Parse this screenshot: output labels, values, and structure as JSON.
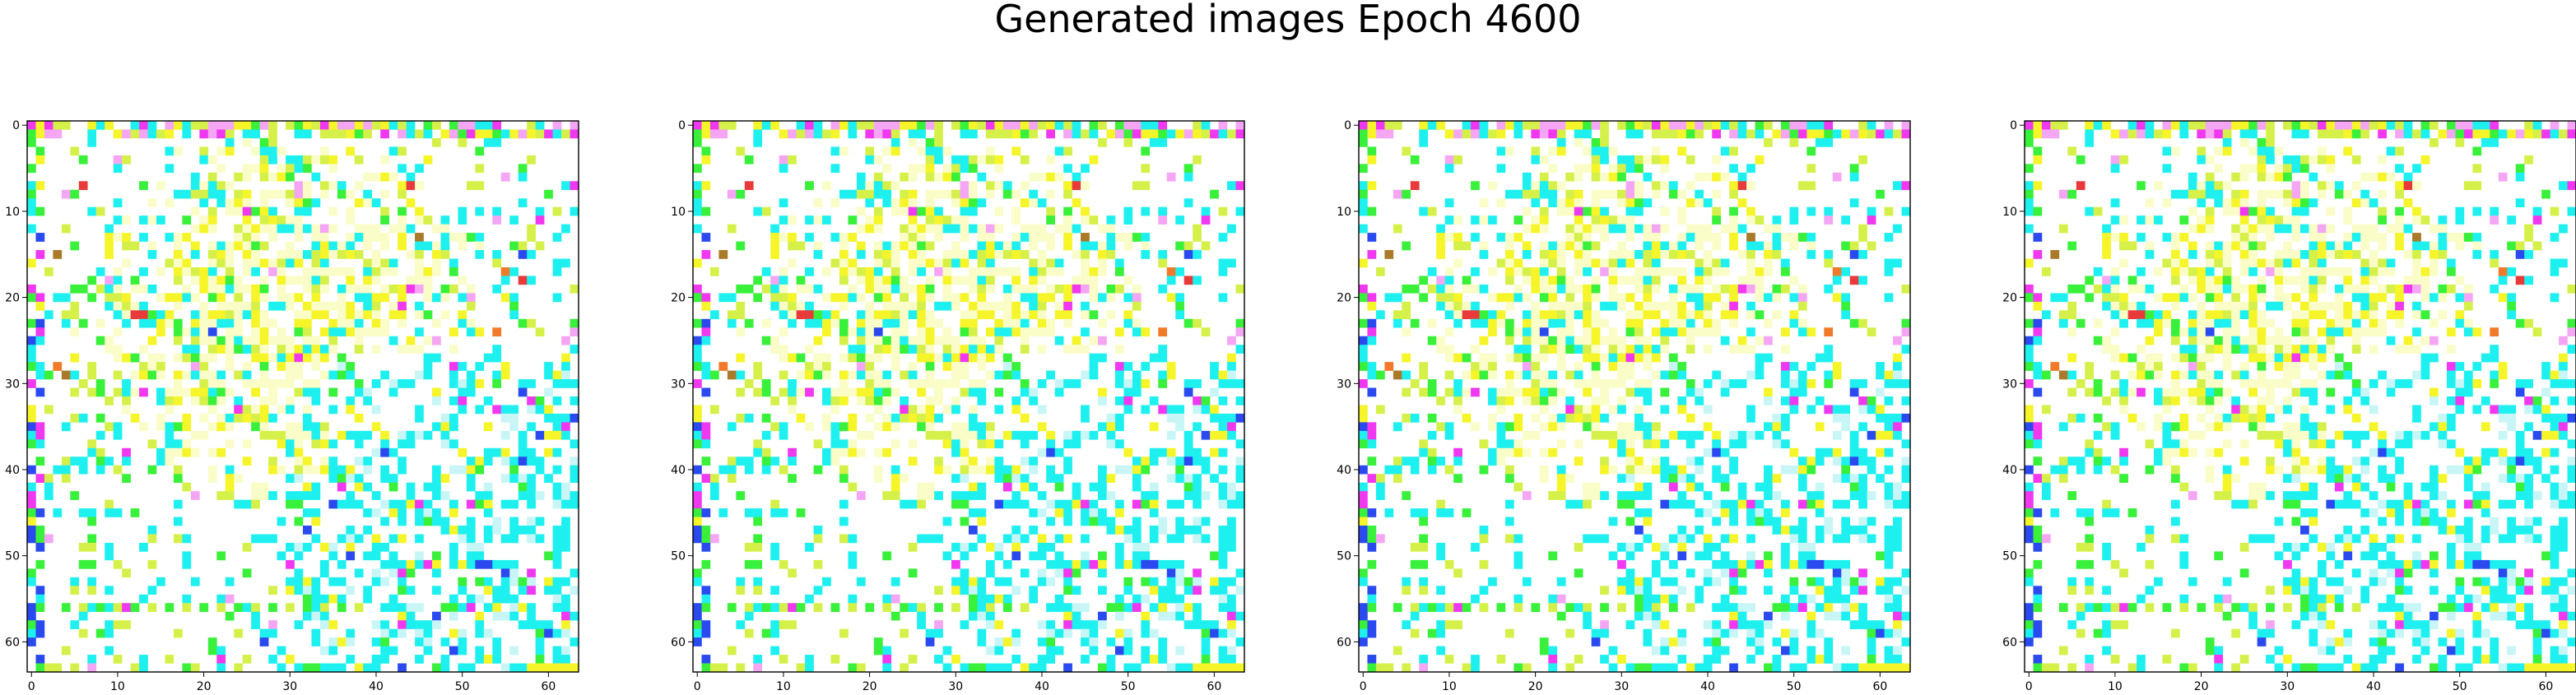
{
  "figure": {
    "title": "Generated images Epoch 4600"
  },
  "colors": {
    "background": "#ffffff",
    "axes": "#000000",
    "palette": {
      "white": "#ffffff",
      "pale_yellow": "#fafdc8",
      "yellow": "#f5f52a",
      "yellow_green": "#d6f04a",
      "green": "#39f03a",
      "cyan": "#1ef0f0",
      "pale_cyan": "#c8f6f6",
      "magenta": "#f038f0",
      "pink": "#f4a6f4",
      "blue": "#2a4af0",
      "orange": "#f07a2a",
      "red": "#e83a3a",
      "brown": "#a87a2a"
    }
  },
  "chart_data": [
    {
      "type": "heatmap",
      "panel": 1,
      "xticks": [
        "0",
        "10",
        "20",
        "30",
        "40",
        "50",
        "60"
      ],
      "yticks": [
        "0",
        "10",
        "20",
        "30",
        "40",
        "50",
        "60"
      ],
      "xlim": [
        -0.5,
        63.5
      ],
      "ylim": [
        63.5,
        -0.5
      ],
      "grid": false,
      "size": [
        64,
        64
      ]
    },
    {
      "type": "heatmap",
      "panel": 2,
      "xticks": [
        "0",
        "10",
        "20",
        "30",
        "40",
        "50",
        "60"
      ],
      "yticks": [
        "0",
        "10",
        "20",
        "30",
        "40",
        "50",
        "60"
      ],
      "xlim": [
        -0.5,
        63.5
      ],
      "ylim": [
        63.5,
        -0.5
      ],
      "grid": false,
      "size": [
        64,
        64
      ]
    },
    {
      "type": "heatmap",
      "panel": 3,
      "xticks": [
        "0",
        "10",
        "20",
        "30",
        "40",
        "50",
        "60"
      ],
      "yticks": [
        "0",
        "10",
        "20",
        "30",
        "40",
        "50",
        "60"
      ],
      "xlim": [
        -0.5,
        63.5
      ],
      "ylim": [
        63.5,
        -0.5
      ],
      "grid": false,
      "size": [
        64,
        64
      ]
    },
    {
      "type": "heatmap",
      "panel": 4,
      "xticks": [
        "0",
        "10",
        "20",
        "30",
        "40",
        "50",
        "60"
      ],
      "yticks": [
        "0",
        "10",
        "20",
        "30",
        "40",
        "50",
        "60"
      ],
      "xlim": [
        -0.5,
        63.5
      ],
      "ylim": [
        63.5,
        -0.5
      ],
      "grid": false,
      "size": [
        64,
        64
      ]
    }
  ]
}
